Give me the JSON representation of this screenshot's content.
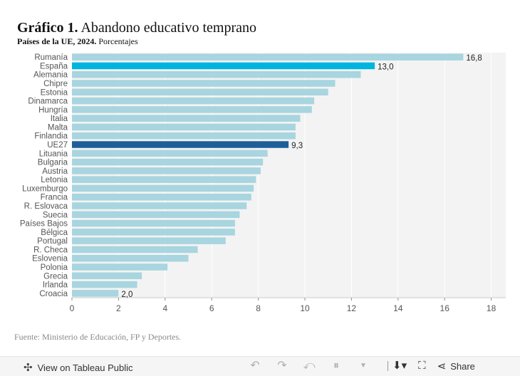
{
  "header": {
    "title_bold": "Gráfico 1.",
    "title_rest": "Abandono educativo temprano",
    "subtitle_bold": "Países de la UE, 2024.",
    "subtitle_rest": "Porcentajes"
  },
  "chart_data": {
    "type": "bar",
    "orientation": "horizontal",
    "categories": [
      "Rumanía",
      "España",
      "Alemania",
      "Chipre",
      "Estonia",
      "Dinamarca",
      "Hungría",
      "Italia",
      "Malta",
      "Finlandia",
      "UE27",
      "Lituania",
      "Bulgaria",
      "Austria",
      "Letonia",
      "Luxemburgo",
      "Francia",
      "R. Eslovaca",
      "Suecia",
      "Países Bajos",
      "Bélgica",
      "Portugal",
      "R. Checa",
      "Eslovenia",
      "Polonia",
      "Grecia",
      "Irlanda",
      "Croacia"
    ],
    "values": [
      16.8,
      13.0,
      12.4,
      11.3,
      11.0,
      10.4,
      10.3,
      9.8,
      9.6,
      9.6,
      9.3,
      8.4,
      8.2,
      8.1,
      7.9,
      7.8,
      7.7,
      7.5,
      7.2,
      7.0,
      7.0,
      6.6,
      5.4,
      5.0,
      4.1,
      3.0,
      2.8,
      2.0
    ],
    "data_labels": {
      "Rumanía": "16,8",
      "España": "13,0",
      "UE27": "9,3",
      "Croacia": "2,0"
    },
    "highlight": {
      "España": "#00b4e0",
      "UE27": "#1f5f99"
    },
    "default_color": "#a8d5df",
    "xlim": [
      0,
      18.5
    ],
    "xticks": [
      0,
      2,
      4,
      6,
      8,
      10,
      12,
      14,
      16,
      18
    ],
    "grid": true,
    "background": "#f3f3f3"
  },
  "footer": {
    "source": "Fuente: Ministerio de Educación, FP y Deportes."
  },
  "toolbar": {
    "view_label": "View on Tableau Public",
    "share_label": "Share"
  }
}
